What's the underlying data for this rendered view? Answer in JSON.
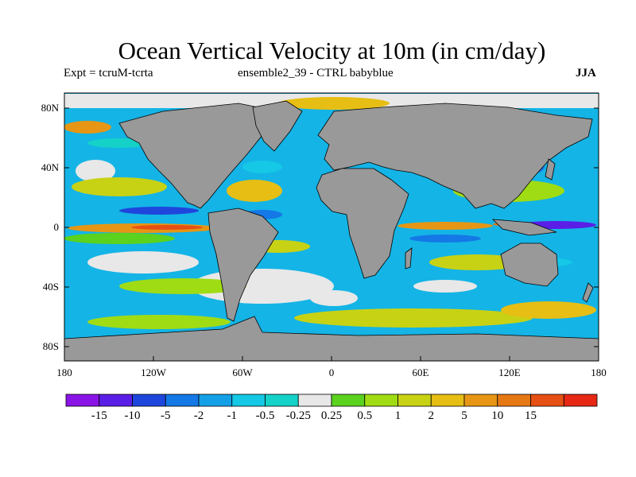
{
  "title": "Ocean Vertical Velocity at 10m (in cm/day)",
  "subtitle_left": "Expt = tcruM-tcrta",
  "subtitle_center": "ensemble2_39 - CTRL babyblue",
  "season": "JJA",
  "lat_labels": [
    "80N",
    "40N",
    "0",
    "40S",
    "80S"
  ],
  "lon_labels": [
    "180",
    "120W",
    "60W",
    "0",
    "60E",
    "120E",
    "180"
  ],
  "colorbar": {
    "colors": [
      "#8a14e6",
      "#5a1ee6",
      "#1e46dc",
      "#1478e6",
      "#14a0e6",
      "#14c8e6",
      "#14d2c8",
      "#e8e8e8",
      "#5ad21e",
      "#a0dc14",
      "#c8d214",
      "#e6be14",
      "#e69614",
      "#e67814",
      "#e65014",
      "#e62814"
    ],
    "labels": [
      "-15",
      "-10",
      "-5",
      "-2",
      "-1",
      "-0.5",
      "-0.25",
      "0.25",
      "0.5",
      "1",
      "2",
      "5",
      "10",
      "15"
    ]
  },
  "colors": {
    "land": "#999999",
    "ocean_fill": "#14b4e6"
  }
}
